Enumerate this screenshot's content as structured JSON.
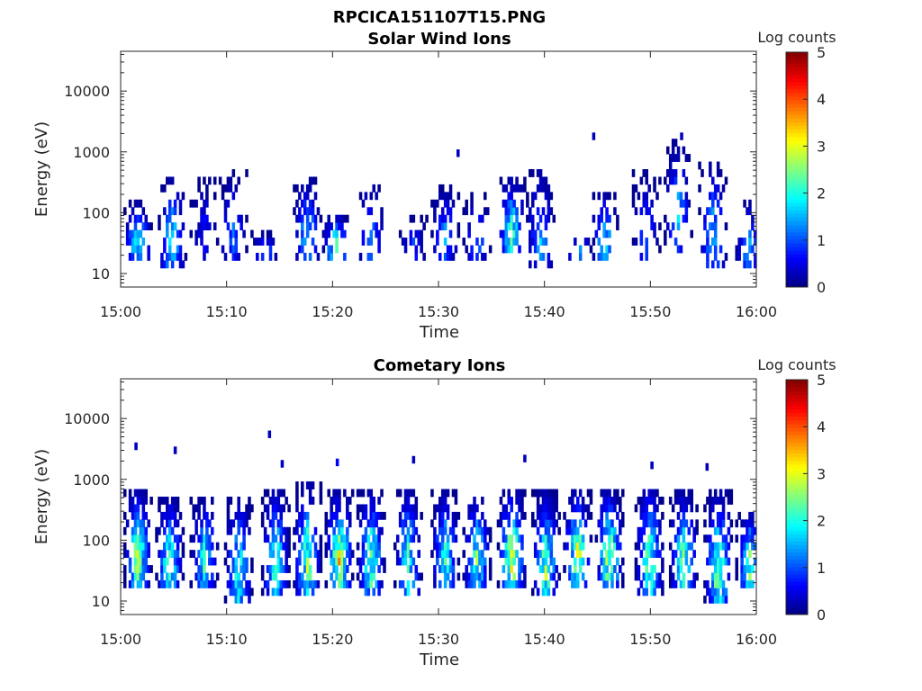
{
  "figure": {
    "title": "RPCICA151107T15.PNG"
  },
  "chart_data": [
    {
      "type": "heatmap",
      "title": "Solar Wind Ions",
      "xlabel": "Time",
      "ylabel": "Energy (eV)",
      "x_ticks": [
        "15:00",
        "15:10",
        "15:20",
        "15:30",
        "15:40",
        "15:50",
        "16:00"
      ],
      "x_range_minutes": [
        0,
        60
      ],
      "y_ticks": [
        "10",
        "100",
        "1000",
        "10000"
      ],
      "y_scale": "log",
      "y_range_eV": [
        6,
        45000
      ],
      "colorbar": {
        "label": "Log counts",
        "ticks": [
          "0",
          "1",
          "2",
          "3",
          "4",
          "5"
        ],
        "range": [
          0,
          5
        ],
        "colormap": "jet"
      },
      "grid": false,
      "bursts": [
        {
          "t": 1.5,
          "e_lo": 17,
          "e_hi": 150,
          "peak": 2.3,
          "density": 0.7
        },
        {
          "t": 4.7,
          "e_lo": 12,
          "e_hi": 350,
          "peak": 2.2,
          "density": 0.6
        },
        {
          "t": 7.8,
          "e_lo": 17,
          "e_hi": 400,
          "peak": 0.8,
          "density": 0.4
        },
        {
          "t": 10.5,
          "e_lo": 17,
          "e_hi": 450,
          "peak": 1.2,
          "density": 0.45
        },
        {
          "t": 13.5,
          "e_lo": 17,
          "e_hi": 45,
          "peak": 1.5,
          "density": 0.5
        },
        {
          "t": 17.5,
          "e_lo": 17,
          "e_hi": 380,
          "peak": 2.0,
          "density": 0.55
        },
        {
          "t": 20.2,
          "e_lo": 17,
          "e_hi": 90,
          "peak": 2.8,
          "density": 0.7
        },
        {
          "t": 23.5,
          "e_lo": 17,
          "e_hi": 300,
          "peak": 1.6,
          "density": 0.45
        },
        {
          "t": 27.5,
          "e_lo": 17,
          "e_hi": 90,
          "peak": 1.0,
          "density": 0.35
        },
        {
          "t": 30.5,
          "e_lo": 17,
          "e_hi": 280,
          "peak": 1.5,
          "density": 0.5
        },
        {
          "t": 33.5,
          "e_lo": 17,
          "e_hi": 200,
          "peak": 1.3,
          "density": 0.45
        },
        {
          "t": 36.8,
          "e_lo": 20,
          "e_hi": 420,
          "peak": 2.4,
          "density": 0.65
        },
        {
          "t": 39.5,
          "e_lo": 12,
          "e_hi": 550,
          "peak": 1.6,
          "density": 0.55
        },
        {
          "t": 43.2,
          "e_lo": 17,
          "e_hi": 45,
          "peak": 2.0,
          "density": 0.5
        },
        {
          "t": 45.5,
          "e_lo": 17,
          "e_hi": 200,
          "peak": 2.2,
          "density": 0.55
        },
        {
          "t": 49.5,
          "e_lo": 17,
          "e_hi": 450,
          "peak": 1.2,
          "density": 0.45
        },
        {
          "t": 52.5,
          "e_lo": 20,
          "e_hi": 1800,
          "peak": 1.6,
          "density": 0.4
        },
        {
          "t": 55.8,
          "e_lo": 12,
          "e_hi": 650,
          "peak": 1.8,
          "density": 0.5
        },
        {
          "t": 59.2,
          "e_lo": 12,
          "e_hi": 150,
          "peak": 1.6,
          "density": 0.5
        }
      ],
      "isolated": [
        {
          "t": 31.7,
          "e": 950,
          "v": 0.3
        },
        {
          "t": 44.5,
          "e": 1800,
          "v": 0.3
        },
        {
          "t": 52.8,
          "e": 1800,
          "v": 0.3
        }
      ]
    },
    {
      "type": "heatmap",
      "title": "Cometary Ions",
      "xlabel": "Time",
      "ylabel": "Energy (eV)",
      "x_ticks": [
        "15:00",
        "15:10",
        "15:20",
        "15:30",
        "15:40",
        "15:50",
        "16:00"
      ],
      "x_range_minutes": [
        0,
        60
      ],
      "y_ticks": [
        "10",
        "100",
        "1000",
        "10000"
      ],
      "y_scale": "log",
      "y_range_eV": [
        6,
        45000
      ],
      "colorbar": {
        "label": "Log counts",
        "ticks": [
          "0",
          "1",
          "2",
          "3",
          "4",
          "5"
        ],
        "range": [
          0,
          5
        ],
        "colormap": "jet"
      },
      "grid": false,
      "bursts": [
        {
          "t": 1.5,
          "e_lo": 17,
          "e_hi": 700,
          "peak": 2.9,
          "density": 0.85
        },
        {
          "t": 4.5,
          "e_lo": 15,
          "e_hi": 500,
          "peak": 2.6,
          "density": 0.8
        },
        {
          "t": 7.8,
          "e_lo": 17,
          "e_hi": 500,
          "peak": 2.3,
          "density": 0.75
        },
        {
          "t": 11.0,
          "e_lo": 8,
          "e_hi": 550,
          "peak": 2.3,
          "density": 0.75
        },
        {
          "t": 14.5,
          "e_lo": 12,
          "e_hi": 700,
          "peak": 2.6,
          "density": 0.8
        },
        {
          "t": 17.5,
          "e_lo": 12,
          "e_hi": 900,
          "peak": 2.8,
          "density": 0.8
        },
        {
          "t": 20.5,
          "e_lo": 17,
          "e_hi": 600,
          "peak": 3.4,
          "density": 0.85
        },
        {
          "t": 23.5,
          "e_lo": 12,
          "e_hi": 800,
          "peak": 2.7,
          "density": 0.8
        },
        {
          "t": 27.0,
          "e_lo": 12,
          "e_hi": 800,
          "peak": 2.4,
          "density": 0.75
        },
        {
          "t": 30.5,
          "e_lo": 17,
          "e_hi": 600,
          "peak": 2.4,
          "density": 0.8
        },
        {
          "t": 33.5,
          "e_lo": 17,
          "e_hi": 550,
          "peak": 2.6,
          "density": 0.8
        },
        {
          "t": 36.8,
          "e_lo": 17,
          "e_hi": 700,
          "peak": 3.6,
          "density": 0.85
        },
        {
          "t": 40.0,
          "e_lo": 12,
          "e_hi": 600,
          "peak": 2.8,
          "density": 0.8
        },
        {
          "t": 43.0,
          "e_lo": 17,
          "e_hi": 700,
          "peak": 3.2,
          "density": 0.8
        },
        {
          "t": 46.0,
          "e_lo": 17,
          "e_hi": 700,
          "peak": 3.3,
          "density": 0.85
        },
        {
          "t": 49.8,
          "e_lo": 12,
          "e_hi": 800,
          "peak": 2.8,
          "density": 0.8
        },
        {
          "t": 53.0,
          "e_lo": 17,
          "e_hi": 600,
          "peak": 2.7,
          "density": 0.8
        },
        {
          "t": 56.3,
          "e_lo": 10,
          "e_hi": 600,
          "peak": 3.1,
          "density": 0.8
        },
        {
          "t": 59.3,
          "e_lo": 17,
          "e_hi": 300,
          "peak": 2.9,
          "density": 0.8
        }
      ],
      "isolated": [
        {
          "t": 1.3,
          "e": 3500,
          "v": 0.3
        },
        {
          "t": 5.0,
          "e": 3000,
          "v": 0.3
        },
        {
          "t": 13.9,
          "e": 5500,
          "v": 0.3
        },
        {
          "t": 15.1,
          "e": 1800,
          "v": 0.3
        },
        {
          "t": 20.3,
          "e": 1900,
          "v": 0.6
        },
        {
          "t": 27.5,
          "e": 2100,
          "v": 0.3
        },
        {
          "t": 38.0,
          "e": 2200,
          "v": 0.3
        },
        {
          "t": 50.0,
          "e": 1700,
          "v": 0.3
        },
        {
          "t": 55.2,
          "e": 1600,
          "v": 0.3
        }
      ]
    }
  ]
}
